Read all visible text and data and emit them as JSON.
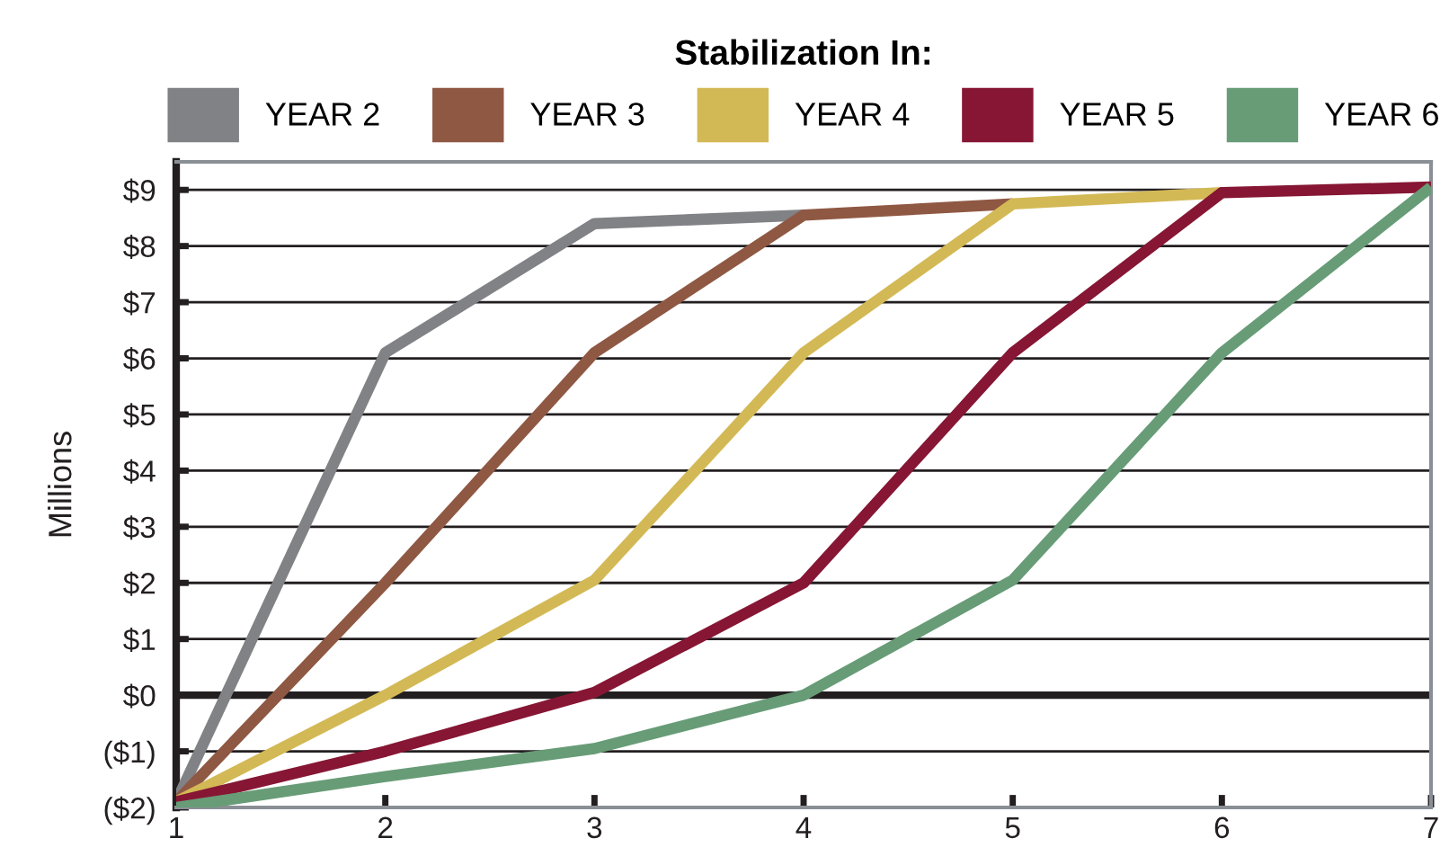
{
  "chart_data": {
    "type": "line",
    "legend_title": "Stabilization In:",
    "ylabel": "Millions",
    "x": [
      1,
      2,
      3,
      4,
      5,
      6,
      7
    ],
    "series": [
      {
        "name": "YEAR 2",
        "color": "#818286",
        "values": [
          -1.9,
          6.1,
          8.4,
          8.55,
          null,
          null,
          null
        ]
      },
      {
        "name": "YEAR 3",
        "color": "#8f5843",
        "values": [
          -1.9,
          2.0,
          6.1,
          8.55,
          8.75,
          null,
          null
        ]
      },
      {
        "name": "YEAR 4",
        "color": "#d3b955",
        "values": [
          -1.9,
          0.0,
          2.05,
          6.1,
          8.75,
          8.95,
          null
        ]
      },
      {
        "name": "YEAR 5",
        "color": "#861634",
        "values": [
          -1.9,
          -1.0,
          0.05,
          2.0,
          6.1,
          8.95,
          9.05
        ]
      },
      {
        "name": "YEAR 6",
        "color": "#679c77",
        "values": [
          -2.0,
          -1.45,
          -0.95,
          0.0,
          2.05,
          6.1,
          9.05
        ]
      }
    ],
    "xlim": [
      1,
      7
    ],
    "xticks": [
      1,
      2,
      3,
      4,
      5,
      6,
      7
    ],
    "ylim": [
      -2,
      9.5
    ],
    "yticks": [
      {
        "value": -2,
        "label": "($2)"
      },
      {
        "value": -1,
        "label": "($1)"
      },
      {
        "value": 0,
        "label": "$0"
      },
      {
        "value": 1,
        "label": "$1"
      },
      {
        "value": 2,
        "label": "$2"
      },
      {
        "value": 3,
        "label": "$3"
      },
      {
        "value": 4,
        "label": "$4"
      },
      {
        "value": 5,
        "label": "$5"
      },
      {
        "value": 6,
        "label": "$6"
      },
      {
        "value": 7,
        "label": "$7"
      },
      {
        "value": 8,
        "label": "$8"
      },
      {
        "value": 9,
        "label": "$9"
      }
    ],
    "ref_lines": [
      {
        "axis": "y",
        "value": 0,
        "color": "#231f20"
      }
    ],
    "grid": "y",
    "legend": "top",
    "marker": "none",
    "line_style": "solid"
  }
}
